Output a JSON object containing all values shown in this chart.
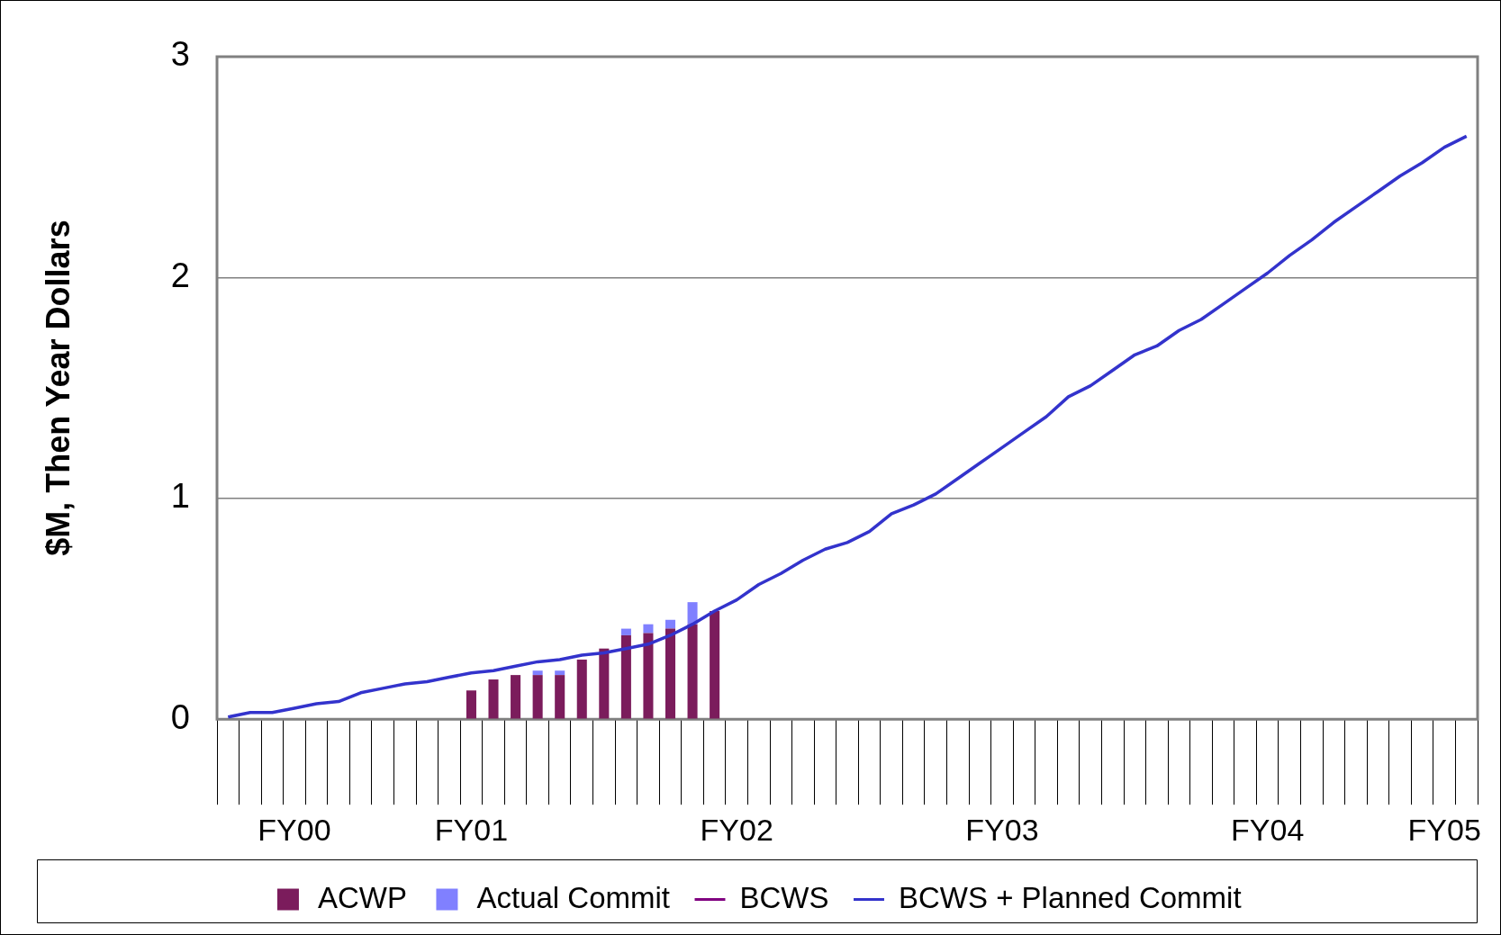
{
  "chart_data": {
    "type": "bar",
    "ylabel": "$M, Then Year Dollars",
    "categories": [
      null,
      null,
      null,
      "FY00",
      null,
      null,
      null,
      null,
      null,
      null,
      null,
      "FY01",
      null,
      null,
      null,
      null,
      null,
      null,
      null,
      null,
      null,
      null,
      null,
      "FY02",
      null,
      null,
      null,
      null,
      null,
      null,
      null,
      null,
      null,
      null,
      null,
      "FY03",
      null,
      null,
      null,
      null,
      null,
      null,
      null,
      null,
      null,
      null,
      null,
      "FY04",
      null,
      null,
      null,
      null,
      null,
      null,
      null,
      "FY05",
      null
    ],
    "series": [
      {
        "name": "ACWP",
        "color": "#7b1c5c",
        "values": [
          null,
          null,
          null,
          null,
          null,
          null,
          null,
          null,
          null,
          null,
          null,
          0.13,
          0.18,
          0.2,
          0.2,
          0.2,
          0.27,
          0.32,
          0.38,
          0.39,
          0.41,
          0.43,
          0.49,
          null,
          null,
          null,
          null,
          null,
          null,
          null,
          null,
          null,
          null,
          null,
          null,
          null,
          null,
          null,
          null,
          null,
          null,
          null,
          null,
          null,
          null,
          null,
          null,
          null,
          null,
          null,
          null,
          null,
          null,
          null,
          null,
          null,
          null
        ]
      },
      {
        "name": "Actual Commit",
        "color": "#8080ff",
        "values": [
          null,
          null,
          null,
          null,
          null,
          null,
          null,
          null,
          null,
          null,
          null,
          null,
          null,
          null,
          0.02,
          0.02,
          null,
          null,
          0.03,
          0.04,
          0.04,
          0.1,
          null,
          null,
          null,
          null,
          null,
          null,
          null,
          null,
          null,
          null,
          null,
          null,
          null,
          null,
          null,
          null,
          null,
          null,
          null,
          null,
          null,
          null,
          null,
          null,
          null,
          null,
          null,
          null,
          null,
          null,
          null,
          null,
          null,
          null,
          null
        ]
      },
      {
        "name": "BCWS",
        "type": "line",
        "color": "#800080",
        "values": [
          null,
          null,
          null,
          null,
          null,
          null,
          null,
          null,
          null,
          null,
          null,
          null,
          null,
          null,
          null,
          null,
          null,
          null,
          null,
          null,
          null,
          null,
          null,
          null,
          null,
          null,
          null,
          null,
          null,
          null,
          null,
          null,
          null,
          null,
          null,
          null,
          null,
          null,
          null,
          null,
          null,
          null,
          null,
          null,
          null,
          null,
          null,
          null,
          null,
          null,
          null,
          null,
          null,
          null,
          null,
          null,
          null
        ]
      },
      {
        "name": "BCWS + Planned Commit",
        "type": "line",
        "color": "#3333cc",
        "values": [
          0.01,
          0.03,
          0.03,
          0.05,
          0.07,
          0.08,
          0.12,
          0.14,
          0.16,
          0.17,
          0.19,
          0.21,
          0.22,
          0.24,
          0.26,
          0.27,
          0.29,
          0.3,
          0.32,
          0.34,
          0.38,
          0.43,
          0.49,
          0.54,
          0.61,
          0.66,
          0.72,
          0.77,
          0.8,
          0.85,
          0.93,
          0.97,
          1.02,
          1.09,
          1.16,
          1.23,
          1.3,
          1.37,
          1.46,
          1.51,
          1.58,
          1.65,
          1.69,
          1.76,
          1.81,
          1.88,
          1.95,
          2.02,
          2.1,
          2.17,
          2.25,
          2.32,
          2.39,
          2.46,
          2.52,
          2.59,
          2.64
        ]
      }
    ],
    "stacked": true,
    "ylim": [
      0,
      3
    ],
    "yticks": [
      0,
      1,
      2,
      3
    ],
    "grid": "y",
    "legend": "bottom"
  }
}
